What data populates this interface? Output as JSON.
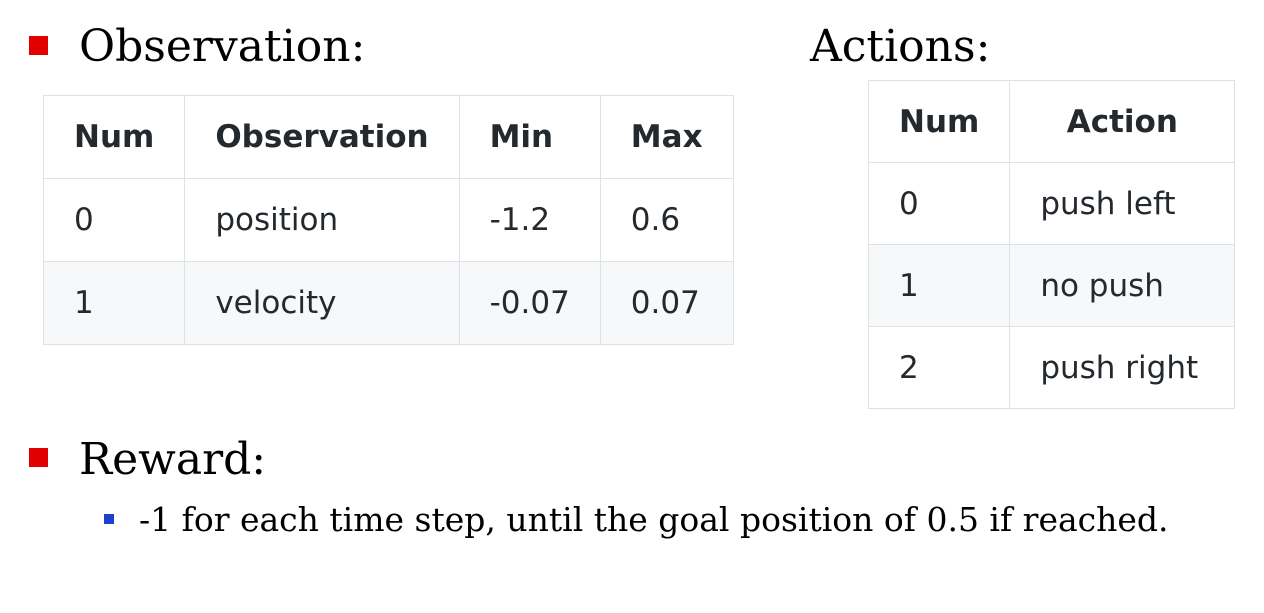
{
  "observation": {
    "heading": "Observation:",
    "columns": [
      "Num",
      "Observation",
      "Min",
      "Max"
    ],
    "rows": [
      [
        "0",
        "position",
        "-1.2",
        "0.6"
      ],
      [
        "1",
        "velocity",
        "-0.07",
        "0.07"
      ]
    ]
  },
  "actions": {
    "heading": "Actions:",
    "columns": [
      "Num",
      "Action"
    ],
    "rows": [
      [
        "0",
        "push left"
      ],
      [
        "1",
        "no push"
      ],
      [
        "2",
        "push right"
      ]
    ]
  },
  "reward": {
    "heading": "Reward:",
    "items": [
      "-1 for each time step, until the goal position of 0.5 if reached."
    ]
  },
  "colors": {
    "main_bullet": "#e00000",
    "sub_bullet": "#1f3fcf",
    "table_border": "#dfe2e5",
    "table_alt_row": "#f6f8fa",
    "table_text": "#24292e"
  }
}
